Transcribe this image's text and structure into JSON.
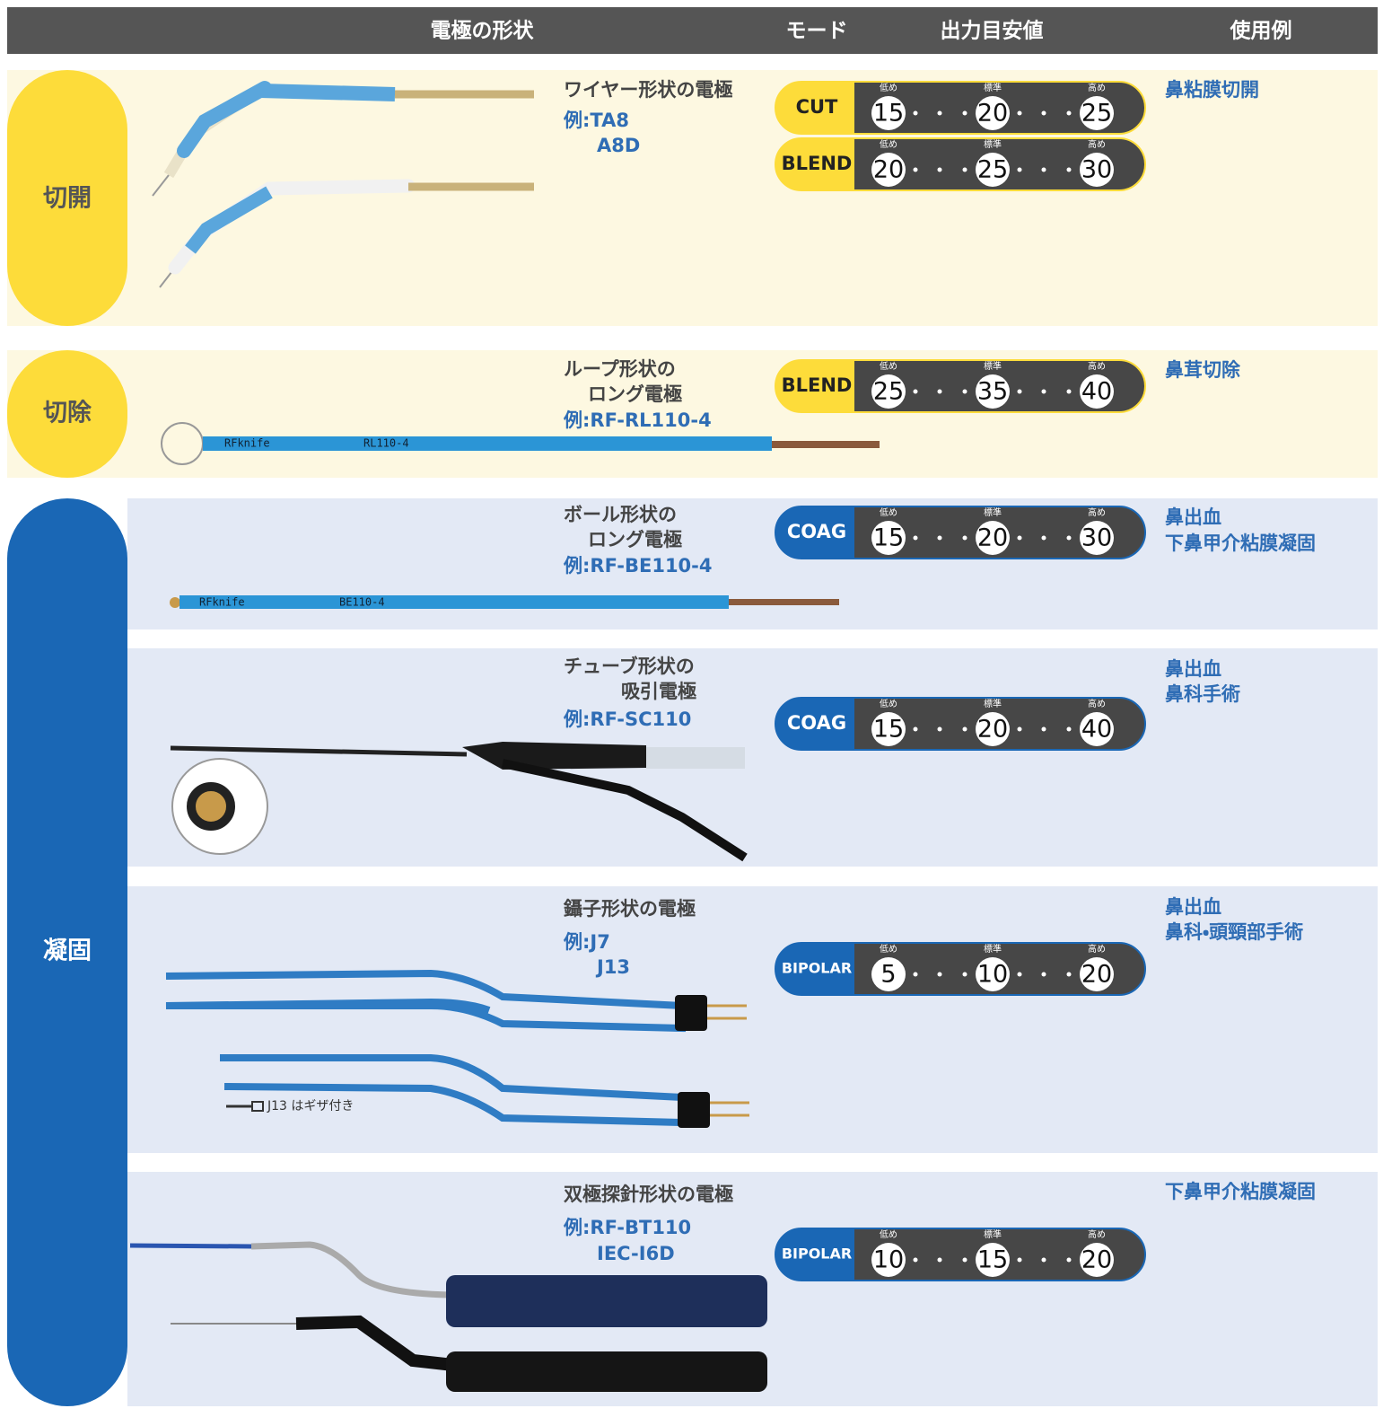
{
  "header": {
    "columns": [
      "電極の形状",
      "モード",
      "出力目安値",
      "使用例"
    ]
  },
  "level_labels": [
    "低め",
    "標準",
    "高め"
  ],
  "groups": [
    {
      "label": "切開",
      "color": "#fddc3a",
      "label_color": "#555555",
      "background": "#fdf8e1",
      "rows": [
        {
          "shape": [
            "ワイヤー形状の電極"
          ],
          "example": [
            "例:TA8",
            "A8D"
          ],
          "settings": [
            {
              "mode": "CUT",
              "values": [
                15,
                20,
                25
              ]
            },
            {
              "mode": "BLEND",
              "values": [
                20,
                25,
                30
              ]
            }
          ],
          "uses": [
            "鼻粘膜切開"
          ]
        }
      ]
    },
    {
      "label": "切除",
      "color": "#fddc3a",
      "label_color": "#555555",
      "background": "#fdf8e1",
      "rows": [
        {
          "shape": [
            "ループ形状の",
            "ロング電極"
          ],
          "example": [
            "例:RF-RL110-4"
          ],
          "settings": [
            {
              "mode": "BLEND",
              "values": [
                25,
                35,
                40
              ]
            }
          ],
          "uses": [
            "鼻茸切除"
          ]
        }
      ]
    },
    {
      "label": "凝固",
      "color": "#1a67b5",
      "label_color": "#ffffff",
      "background": "#e3e9f5",
      "rows": [
        {
          "shape": [
            "ボール形状の",
            "ロング電極"
          ],
          "example": [
            "例:RF-BE110-4"
          ],
          "settings": [
            {
              "mode": "COAG",
              "values": [
                15,
                20,
                30
              ]
            }
          ],
          "uses": [
            "鼻出血",
            "下鼻甲介粘膜凝固"
          ]
        },
        {
          "shape": [
            "チューブ形状の",
            "吸引電極"
          ],
          "example": [
            "例:RF-SC110"
          ],
          "settings": [
            {
              "mode": "COAG",
              "values": [
                15,
                20,
                40
              ]
            }
          ],
          "uses": [
            "鼻出血",
            "鼻科手術"
          ]
        },
        {
          "shape": [
            "鑷子形状の電極"
          ],
          "example": [
            "例:J7",
            "J13"
          ],
          "settings": [
            {
              "mode": "BIPOLAR",
              "values": [
                5,
                10,
                20
              ]
            }
          ],
          "uses": [
            "鼻出血",
            "鼻科・頭頸部手術"
          ]
        },
        {
          "shape": [
            "双極探針形状の電極"
          ],
          "example": [
            "例:RF-BT110",
            "IEC-I6D"
          ],
          "settings": [
            {
              "mode": "BIPOLAR",
              "values": [
                10,
                15,
                20
              ]
            }
          ],
          "uses": [
            "下鼻甲介粘膜凝固"
          ]
        }
      ]
    }
  ],
  "annotation": "J13 はギザ付き",
  "electrode_labels": [
    "RFknife",
    "RL110-4",
    "BE110-4"
  ]
}
